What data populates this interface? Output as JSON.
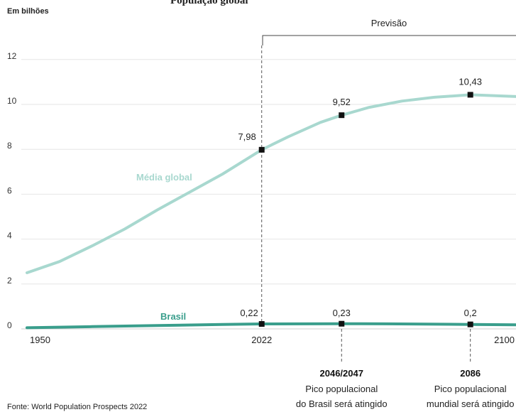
{
  "chart_data": {
    "type": "line",
    "title": "População global",
    "unit_label": "Em bilhões",
    "forecast_label": "Previsão",
    "x_range": [
      1950,
      2100
    ],
    "y_range": [
      0,
      13
    ],
    "y_ticks": [
      "0",
      "2",
      "4",
      "6",
      "8",
      "10",
      "12"
    ],
    "y_tick_values": [
      0,
      2,
      4,
      6,
      8,
      10,
      12
    ],
    "x_ticks": [
      "1950",
      "2022",
      "2100"
    ],
    "x_tick_values": [
      1950,
      2022,
      2100
    ],
    "forecast_start": 2022,
    "series": [
      {
        "name": "Média global",
        "color": "#a8d8cf",
        "x": [
          1950,
          1960,
          1970,
          1980,
          1990,
          2000,
          2010,
          2022,
          2030,
          2040,
          2046.5,
          2055,
          2065,
          2075,
          2086,
          2095,
          2100
        ],
        "y": [
          2.5,
          3.0,
          3.7,
          4.45,
          5.3,
          6.1,
          6.9,
          7.98,
          8.55,
          9.2,
          9.52,
          9.87,
          10.15,
          10.32,
          10.43,
          10.38,
          10.35
        ]
      },
      {
        "name": "Brasil",
        "color": "#3a9e8c",
        "x": [
          1950,
          1970,
          1990,
          2010,
          2022,
          2046.5,
          2060,
          2086,
          2100
        ],
        "y": [
          0.05,
          0.1,
          0.15,
          0.2,
          0.22,
          0.23,
          0.225,
          0.2,
          0.18
        ]
      }
    ],
    "points": [
      {
        "series": "Média global",
        "x": 2022,
        "y": 7.98,
        "label": "7,98"
      },
      {
        "series": "Média global",
        "x": 2046.5,
        "y": 9.52,
        "label": "9,52"
      },
      {
        "series": "Média global",
        "x": 2086,
        "y": 10.43,
        "label": "10,43"
      },
      {
        "series": "Brasil",
        "x": 2022,
        "y": 0.22,
        "label": "0,22"
      },
      {
        "series": "Brasil",
        "x": 2046.5,
        "y": 0.23,
        "label": "0,23"
      },
      {
        "series": "Brasil",
        "x": 2086,
        "y": 0.2,
        "label": "0,2"
      }
    ],
    "annotations": [
      {
        "x": 2046.5,
        "year": "2046/2047",
        "line1": "Pico populacional",
        "line2": "do Brasil será atingido"
      },
      {
        "x": 2086,
        "year": "2086",
        "line1": "Pico populacional",
        "line2": "mundial será atingido"
      }
    ],
    "source": "Fonte: World Population Prospects 2022"
  }
}
